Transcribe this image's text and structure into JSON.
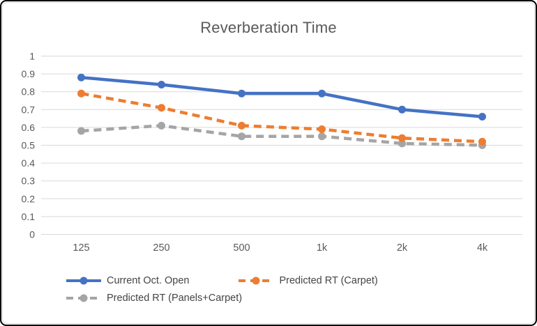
{
  "colors": {
    "series_blue": "#4472C4",
    "series_orange": "#ED7D31",
    "series_gray": "#A5A5A5",
    "gridline": "#D9D9D9",
    "axis_text": "#595959",
    "title_text": "#595959",
    "legend_text": "#444444",
    "border": "#000000"
  },
  "chart_data": {
    "type": "line",
    "title": "Reverberation Time",
    "xlabel": "",
    "ylabel": "",
    "categories": [
      "125",
      "250",
      "500",
      "1k",
      "2k",
      "4k"
    ],
    "series": [
      {
        "name": "Current Oct. Open",
        "color": "#4472C4",
        "line_style": "solid",
        "values": [
          0.88,
          0.84,
          0.79,
          0.79,
          0.7,
          0.66
        ]
      },
      {
        "name": "Predicted RT (Carpet)",
        "color": "#ED7D31",
        "line_style": "dashed",
        "values": [
          0.79,
          0.71,
          0.61,
          0.59,
          0.54,
          0.52
        ]
      },
      {
        "name": "Predicted RT (Panels+Carpet)",
        "color": "#A5A5A5",
        "line_style": "dashed",
        "values": [
          0.58,
          0.61,
          0.55,
          0.55,
          0.51,
          0.5
        ]
      }
    ],
    "ylim": [
      0,
      1
    ],
    "yticks": [
      "1",
      "0.9",
      "0.8",
      "0.7",
      "0.6",
      "0.5",
      "0.4",
      "0.3",
      "0.2",
      "0.1",
      "0"
    ],
    "grid": true,
    "legend_position": "bottom",
    "legend_rows": [
      [
        0,
        1
      ],
      [
        2
      ]
    ]
  }
}
